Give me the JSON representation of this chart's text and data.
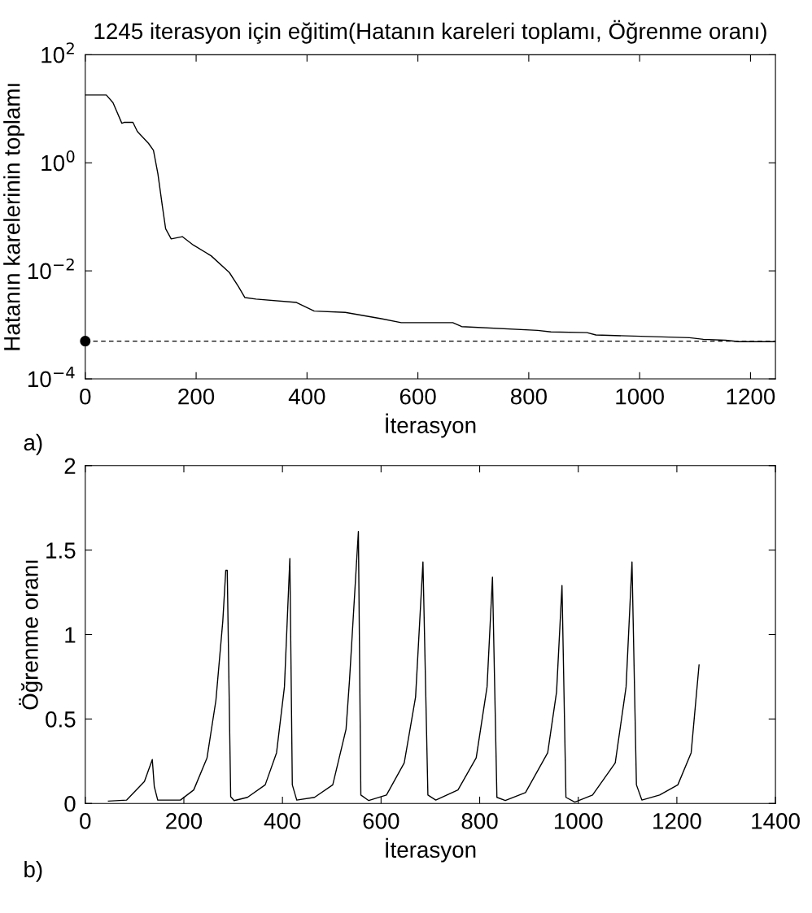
{
  "chart_data": [
    {
      "type": "line",
      "title": "1245 iterasyon için eğitim(Hatanın kareleri toplamı, Öğrenme oranı)",
      "xlabel": "İterasyon",
      "ylabel": "Hatanın karelerinin toplamı",
      "annotations": [
        "a)"
      ],
      "log": "y",
      "grid": false,
      "legend": false,
      "xlim": [
        0,
        1245
      ],
      "xticks": [
        0,
        200,
        400,
        600,
        800,
        1000,
        1200
      ],
      "ylim": [
        0.0001,
        100
      ],
      "yticks": [
        {
          "value": 0.0001,
          "label": "10$^{−4}$"
        },
        {
          "value": 0.01,
          "label": "10$^{−2}$"
        },
        {
          "value": 1,
          "label": "10$^{0}$"
        },
        {
          "value": 100,
          "label": "10$^{2}$"
        }
      ],
      "ref_lines": [
        {
          "axis": "y",
          "value": 0.0005,
          "label": null,
          "color": "#000000",
          "line_style": "dashed"
        }
      ],
      "series": [
        {
          "color": "#000000",
          "line_style": "solid",
          "marker": "none",
          "x": [
            0,
            38,
            50,
            66,
            70,
            86,
            94,
            114,
            123,
            131,
            139,
            145,
            155,
            175,
            195,
            227,
            260,
            276,
            288,
            308,
            381,
            413,
            469,
            534,
            570,
            663,
            679,
            816,
            840,
            905,
            921,
            1090,
            1115,
            1155,
            1179,
            1245
          ],
          "values": [
            18,
            18,
            13,
            5.4,
            5.6,
            5.6,
            3.8,
            2.3,
            1.7,
            0.63,
            0.16,
            0.06,
            0.039,
            0.043,
            0.03,
            0.019,
            0.0093,
            0.0052,
            0.0032,
            0.003,
            0.0026,
            0.0018,
            0.0017,
            0.0013,
            0.0011,
            0.0011,
            0.00093,
            0.00079,
            0.00074,
            0.00072,
            0.00065,
            0.00058,
            0.00054,
            0.00052,
            0.00049,
            0.00049
          ]
        },
        {
          "type": "scatter",
          "color": "#000000",
          "marker": "circle",
          "x": [
            0
          ],
          "values": [
            0.0005
          ]
        }
      ]
    },
    {
      "type": "line",
      "xlabel": "İterasyon",
      "ylabel": "Öğrenme oranı",
      "annotations": [
        "b)"
      ],
      "grid": false,
      "legend": false,
      "xlim": [
        0,
        1400
      ],
      "xticks": [
        0,
        200,
        400,
        600,
        800,
        1000,
        1200,
        1400
      ],
      "ylim": [
        0,
        2
      ],
      "yticks": [
        0,
        0.5,
        1,
        1.5,
        2
      ],
      "series": [
        {
          "color": "#000000",
          "line_style": "solid",
          "marker": "none",
          "x": [
            47,
            84,
            120,
            136,
            140,
            147,
            193,
            220,
            247,
            265,
            279,
            285,
            288,
            295,
            302,
            329,
            365,
            388,
            404,
            415,
            420,
            429,
            465,
            502,
            529,
            536,
            554,
            559,
            575,
            611,
            647,
            670,
            685,
            695,
            711,
            756,
            793,
            815,
            826,
            835,
            852,
            893,
            938,
            956,
            967,
            975,
            993,
            1029,
            1075,
            1097,
            1109,
            1118,
            1129,
            1165,
            1202,
            1229,
            1245
          ],
          "values": [
            0.014,
            0.02,
            0.13,
            0.26,
            0.1,
            0.02,
            0.02,
            0.08,
            0.27,
            0.61,
            1.08,
            1.38,
            1.38,
            0.04,
            0.017,
            0.036,
            0.11,
            0.3,
            0.69,
            1.45,
            0.11,
            0.02,
            0.036,
            0.11,
            0.44,
            0.73,
            1.61,
            0.05,
            0.017,
            0.05,
            0.24,
            0.63,
            1.43,
            0.05,
            0.02,
            0.08,
            0.27,
            0.69,
            1.34,
            0.036,
            0.017,
            0.064,
            0.3,
            0.66,
            1.29,
            0.036,
            0.008,
            0.05,
            0.24,
            0.69,
            1.43,
            0.11,
            0.02,
            0.05,
            0.11,
            0.3,
            0.82
          ]
        }
      ]
    }
  ]
}
